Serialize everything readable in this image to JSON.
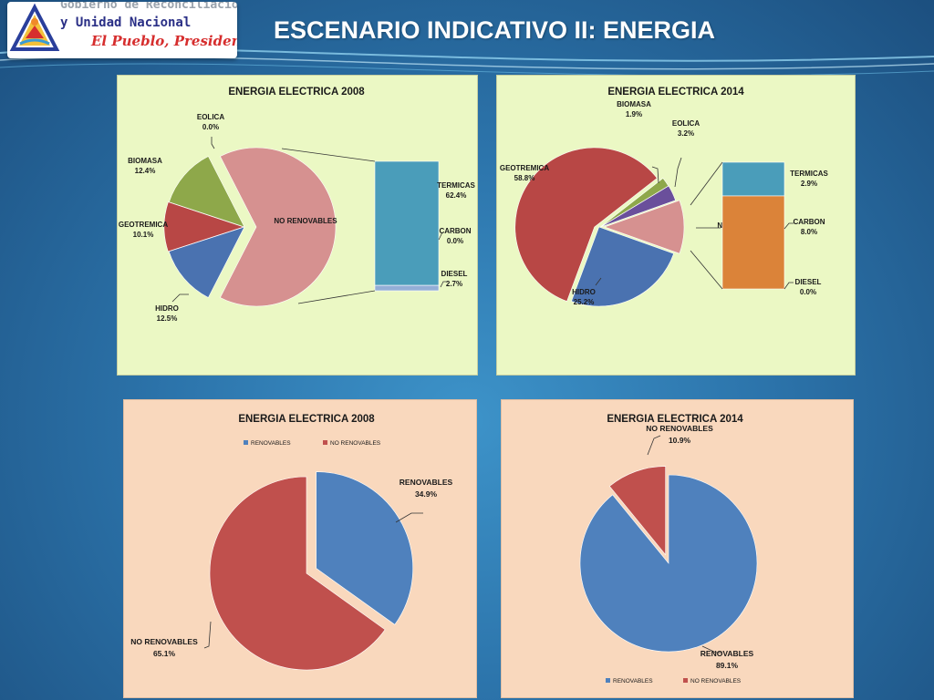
{
  "slide": {
    "title": "ESCENARIO INDICATIVO II: ENERGIA"
  },
  "logo": {
    "line1": "Gobierno de Reconciliacio",
    "line2": "y Unidad Nacional",
    "tagline": "El Pueblo, Presidente!"
  },
  "colors": {
    "hidro": "#4a72b0",
    "geotermica": "#b84745",
    "biomasa": "#8ea84a",
    "eolica": "#6a4f9b",
    "no_renovables": "#d69190",
    "termicas": "#4a9dba",
    "carbon": "#db8339",
    "diesel": "#93aed6",
    "renovables": "#4f81bd",
    "no_renovables_red": "#c0504d"
  },
  "chart_data": [
    {
      "type": "bar-of-pie",
      "title": "ENERGIA ELECTRICA 2008",
      "pie": [
        {
          "label": "NO RENOVABLES",
          "value": 65.1,
          "value_label": ""
        },
        {
          "label": "HIDRO",
          "value": 12.5,
          "value_label": "12.5%"
        },
        {
          "label": "GEOTREMICA",
          "value": 10.1,
          "value_label": "10.1%"
        },
        {
          "label": "BIOMASA",
          "value": 12.4,
          "value_label": "12.4%"
        },
        {
          "label": "EOLICA",
          "value": 0.0,
          "value_label": "0.0%"
        }
      ],
      "bar": [
        {
          "label": "TERMICAS",
          "value": 62.4,
          "value_label": "62.4%"
        },
        {
          "label": "CARBON",
          "value": 0.0,
          "value_label": "0.0%"
        },
        {
          "label": "DIESEL",
          "value": 2.7,
          "value_label": "2.7%"
        }
      ]
    },
    {
      "type": "bar-of-pie",
      "title": "ENERGIA ELECTRICA 2014",
      "pie": [
        {
          "label": "NO RENOVABLES",
          "value": 10.9,
          "value_label": ""
        },
        {
          "label": "HIDRO",
          "value": 25.2,
          "value_label": "25.2%"
        },
        {
          "label": "GEOTREMICA",
          "value": 58.8,
          "value_label": "58.8%"
        },
        {
          "label": "BIOMASA",
          "value": 1.9,
          "value_label": "1.9%"
        },
        {
          "label": "EOLICA",
          "value": 3.2,
          "value_label": "3.2%"
        }
      ],
      "bar": [
        {
          "label": "TERMICAS",
          "value": 2.9,
          "value_label": "2.9%"
        },
        {
          "label": "CARBON",
          "value": 8.0,
          "value_label": "8.0%"
        },
        {
          "label": "DIESEL",
          "value": 0.0,
          "value_label": "0.0%"
        }
      ]
    },
    {
      "type": "pie",
      "title": "ENERGIA ELECTRICA 2008",
      "legend": [
        "RENOVABLES",
        "NO RENOVABLES"
      ],
      "legend_position": "top",
      "slices": [
        {
          "label": "RENOVABLES",
          "value": 34.9,
          "value_label": "34.9%"
        },
        {
          "label": "NO RENOVABLES",
          "value": 65.1,
          "value_label": "65.1%"
        }
      ]
    },
    {
      "type": "pie",
      "title": "ENERGIA ELECTRICA 2014",
      "legend": [
        "RENOVABLES",
        "NO RENOVABLES"
      ],
      "legend_position": "bottom",
      "slices": [
        {
          "label": "RENOVABLES",
          "value": 89.1,
          "value_label": "89.1%"
        },
        {
          "label": "NO RENOVABLES",
          "value": 10.9,
          "value_label": "10.9%"
        }
      ]
    }
  ]
}
